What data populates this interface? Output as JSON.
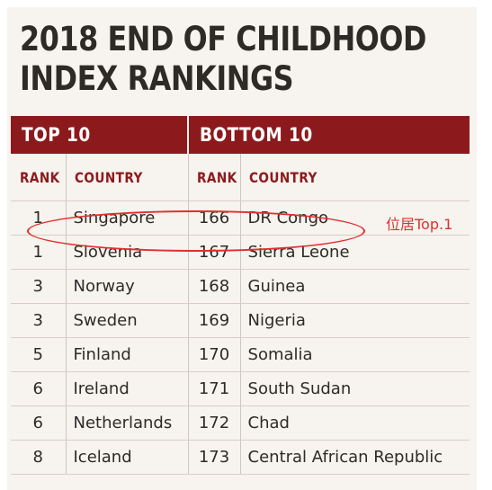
{
  "title": {
    "line1": "2018 END OF CHILDHOOD",
    "line2": "INDEX RANKINGS"
  },
  "sections": {
    "top": "TOP 10",
    "bottom": "BOTTOM 10"
  },
  "columns": {
    "rank": "RANK",
    "country": "COUNTRY"
  },
  "rows": [
    {
      "top_rank": "1",
      "top_country": "Singapore",
      "bottom_rank": "166",
      "bottom_country": "DR Congo"
    },
    {
      "top_rank": "1",
      "top_country": "Slovenia",
      "bottom_rank": "167",
      "bottom_country": "Sierra Leone"
    },
    {
      "top_rank": "3",
      "top_country": "Norway",
      "bottom_rank": "168",
      "bottom_country": "Guinea"
    },
    {
      "top_rank": "3",
      "top_country": "Sweden",
      "bottom_rank": "169",
      "bottom_country": "Nigeria"
    },
    {
      "top_rank": "5",
      "top_country": "Finland",
      "bottom_rank": "170",
      "bottom_country": "Somalia"
    },
    {
      "top_rank": "6",
      "top_country": "Ireland",
      "bottom_rank": "171",
      "bottom_country": "South Sudan"
    },
    {
      "top_rank": "6",
      "top_country": "Netherlands",
      "bottom_rank": "172",
      "bottom_country": "Chad"
    },
    {
      "top_rank": "8",
      "top_country": "Iceland",
      "bottom_rank": "173",
      "bottom_country": "Central African Republic"
    }
  ],
  "annotation": {
    "text": "位居Top.1",
    "color": "#e03030"
  },
  "colors": {
    "accent": "#8c1a1c",
    "background": "#f7f3ee",
    "text": "#2e2a28"
  }
}
